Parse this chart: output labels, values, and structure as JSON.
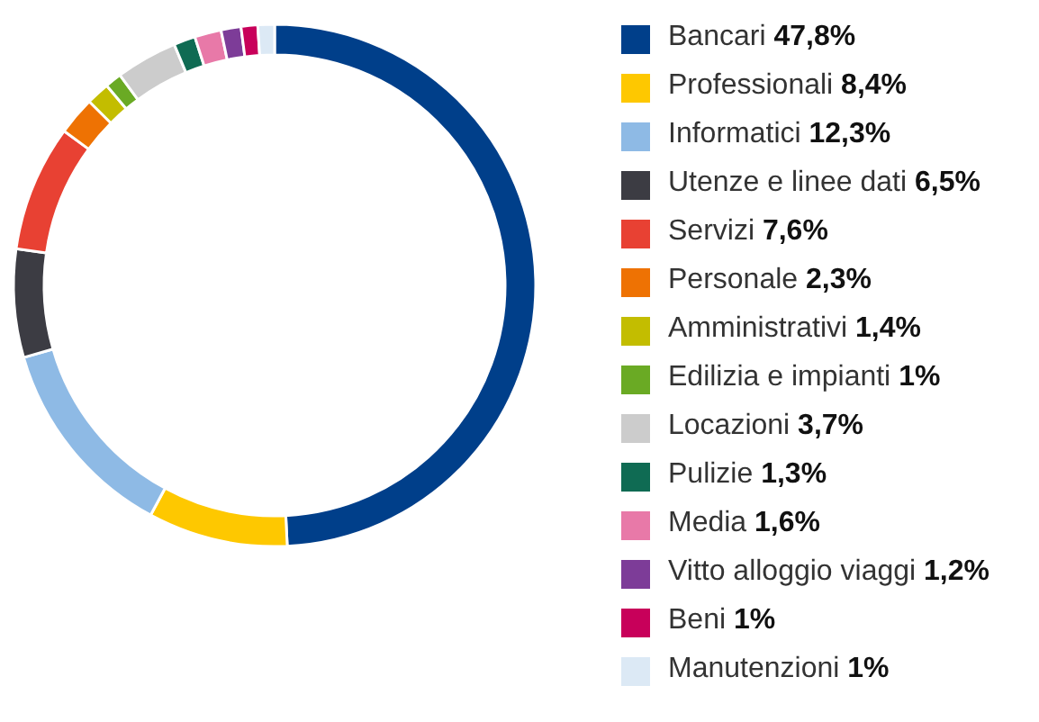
{
  "chart_data": {
    "type": "donut",
    "legend": "right",
    "categories": [
      "Bancari",
      "Professionali",
      "Informatici",
      "Utenze e linee dati",
      "Servizi",
      "Personale",
      "Amministrativi",
      "Edilizia e impianti",
      "Locazioni",
      "Pulizie",
      "Media",
      "Vitto alloggio viaggi",
      "Beni",
      "Manutenzioni"
    ],
    "values": [
      47.8,
      8.4,
      12.3,
      6.5,
      7.6,
      2.3,
      1.4,
      1,
      3.7,
      1.3,
      1.6,
      1.2,
      1,
      1
    ],
    "value_labels": [
      "47,8%",
      "8,4%",
      "12,3%",
      "6,5%",
      "7,6%",
      "2,3%",
      "1,4%",
      "1%",
      "3,7%",
      "1,3%",
      "1,6%",
      "1,2%",
      "1%",
      "1%"
    ],
    "colors": [
      "#003f8a",
      "#fec800",
      "#8ebae5",
      "#3c3c43",
      "#e84133",
      "#ee7203",
      "#c3bd00",
      "#6aaa24",
      "#cccccc",
      "#0f6b53",
      "#e879a8",
      "#7d3c98",
      "#c8005a",
      "#dce9f5"
    ]
  }
}
